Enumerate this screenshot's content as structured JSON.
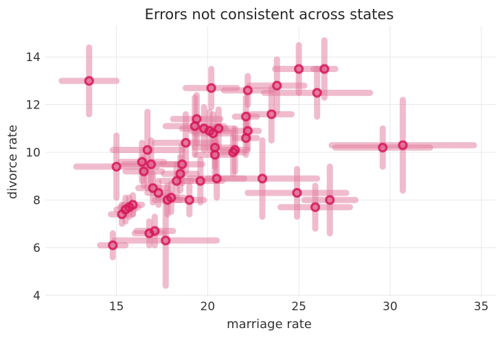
{
  "chart_data": {
    "type": "scatter",
    "title": "Errors not consistent across states",
    "xlabel": "marriage rate",
    "ylabel": "divorce rate",
    "xlim": [
      11.1,
      35.8
    ],
    "ylim": [
      3.95,
      15.3
    ],
    "xticks": [
      15,
      20,
      25,
      30,
      35
    ],
    "yticks": [
      4,
      6,
      8,
      10,
      12,
      14
    ],
    "grid": true,
    "color": "#d6175a",
    "errorbar_color": "#e27a9c",
    "points": [
      {
        "x": 13.5,
        "y": 13.0,
        "xerr": 1.5,
        "yerr": 1.4
      },
      {
        "x": 14.8,
        "y": 6.1,
        "xerr": 0.7,
        "yerr": 0.5
      },
      {
        "x": 15.0,
        "y": 9.4,
        "xerr": 2.2,
        "yerr": 1.3
      },
      {
        "x": 15.3,
        "y": 7.4,
        "xerr": 0.6,
        "yerr": 0.4
      },
      {
        "x": 15.5,
        "y": 7.6,
        "xerr": 0.5,
        "yerr": 0.5
      },
      {
        "x": 15.7,
        "y": 7.7,
        "xerr": 0.5,
        "yerr": 0.4
      },
      {
        "x": 15.9,
        "y": 7.8,
        "xerr": 0.5,
        "yerr": 0.4
      },
      {
        "x": 16.4,
        "y": 9.6,
        "xerr": 1.2,
        "yerr": 0.8
      },
      {
        "x": 16.5,
        "y": 9.2,
        "xerr": 1.0,
        "yerr": 0.6
      },
      {
        "x": 16.7,
        "y": 10.1,
        "xerr": 1.9,
        "yerr": 1.6
      },
      {
        "x": 16.8,
        "y": 6.6,
        "xerr": 0.8,
        "yerr": 0.5
      },
      {
        "x": 16.9,
        "y": 9.5,
        "xerr": 1.5,
        "yerr": 1.0
      },
      {
        "x": 17.0,
        "y": 8.5,
        "xerr": 0.8,
        "yerr": 0.6
      },
      {
        "x": 17.1,
        "y": 6.7,
        "xerr": 1.0,
        "yerr": 0.6
      },
      {
        "x": 17.3,
        "y": 8.3,
        "xerr": 0.6,
        "yerr": 0.5
      },
      {
        "x": 17.7,
        "y": 6.3,
        "xerr": 2.8,
        "yerr": 1.9
      },
      {
        "x": 17.8,
        "y": 8.0,
        "xerr": 0.7,
        "yerr": 0.6
      },
      {
        "x": 18.0,
        "y": 8.1,
        "xerr": 0.7,
        "yerr": 0.6
      },
      {
        "x": 18.3,
        "y": 8.8,
        "xerr": 0.8,
        "yerr": 0.7
      },
      {
        "x": 18.5,
        "y": 9.1,
        "xerr": 0.9,
        "yerr": 0.7
      },
      {
        "x": 18.6,
        "y": 9.5,
        "xerr": 1.1,
        "yerr": 0.8
      },
      {
        "x": 18.8,
        "y": 10.4,
        "xerr": 1.7,
        "yerr": 1.2
      },
      {
        "x": 19.0,
        "y": 8.0,
        "xerr": 0.8,
        "yerr": 0.6
      },
      {
        "x": 19.3,
        "y": 11.1,
        "xerr": 1.6,
        "yerr": 1.2
      },
      {
        "x": 19.4,
        "y": 11.4,
        "xerr": 1.3,
        "yerr": 1.0
      },
      {
        "x": 19.6,
        "y": 8.8,
        "xerr": 1.2,
        "yerr": 0.9
      },
      {
        "x": 19.8,
        "y": 11.0,
        "xerr": 1.2,
        "yerr": 0.9
      },
      {
        "x": 20.1,
        "y": 10.9,
        "xerr": 1.0,
        "yerr": 0.8
      },
      {
        "x": 20.2,
        "y": 12.7,
        "xerr": 1.4,
        "yerr": 0.8
      },
      {
        "x": 20.3,
        "y": 10.8,
        "xerr": 1.0,
        "yerr": 0.8
      },
      {
        "x": 20.4,
        "y": 10.2,
        "xerr": 1.1,
        "yerr": 0.8
      },
      {
        "x": 20.4,
        "y": 9.9,
        "xerr": 1.0,
        "yerr": 0.8
      },
      {
        "x": 20.5,
        "y": 8.9,
        "xerr": 1.5,
        "yerr": 0.8
      },
      {
        "x": 20.6,
        "y": 11.0,
        "xerr": 0.8,
        "yerr": 0.8
      },
      {
        "x": 21.4,
        "y": 10.0,
        "xerr": 0.6,
        "yerr": 0.9
      },
      {
        "x": 21.5,
        "y": 10.1,
        "xerr": 0.7,
        "yerr": 0.9
      },
      {
        "x": 22.1,
        "y": 10.6,
        "xerr": 0.6,
        "yerr": 0.7
      },
      {
        "x": 22.1,
        "y": 11.5,
        "xerr": 0.6,
        "yerr": 0.8
      },
      {
        "x": 22.2,
        "y": 12.6,
        "xerr": 1.3,
        "yerr": 0.6
      },
      {
        "x": 22.2,
        "y": 10.9,
        "xerr": 0.6,
        "yerr": 0.7
      },
      {
        "x": 23.0,
        "y": 8.9,
        "xerr": 3.0,
        "yerr": 1.6
      },
      {
        "x": 23.5,
        "y": 11.6,
        "xerr": 1.1,
        "yerr": 1.1
      },
      {
        "x": 23.8,
        "y": 12.8,
        "xerr": 1.5,
        "yerr": 1.1
      },
      {
        "x": 24.9,
        "y": 8.3,
        "xerr": 2.7,
        "yerr": 1.0
      },
      {
        "x": 25.0,
        "y": 13.5,
        "xerr": 1.3,
        "yerr": 1.0
      },
      {
        "x": 25.9,
        "y": 7.7,
        "xerr": 1.9,
        "yerr": 0.9
      },
      {
        "x": 26.0,
        "y": 12.5,
        "xerr": 2.9,
        "yerr": 1.0
      },
      {
        "x": 26.4,
        "y": 13.5,
        "xerr": 0.6,
        "yerr": 1.2
      },
      {
        "x": 26.7,
        "y": 8.0,
        "xerr": 1.4,
        "yerr": 1.4
      },
      {
        "x": 29.6,
        "y": 10.2,
        "xerr": 2.6,
        "yerr": 0.8
      },
      {
        "x": 30.7,
        "y": 10.3,
        "xerr": 3.9,
        "yerr": 1.9
      }
    ]
  }
}
